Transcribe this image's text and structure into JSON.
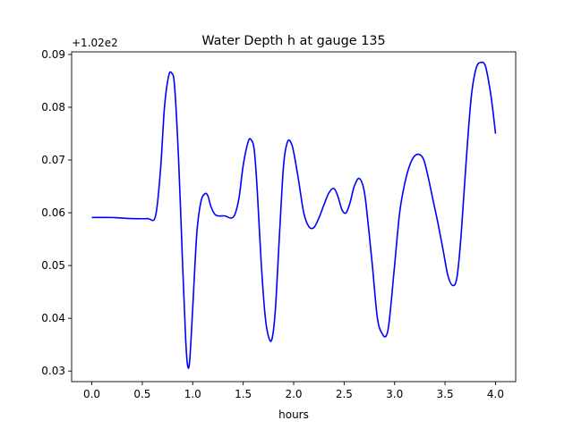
{
  "chart_data": {
    "type": "line",
    "title": "Water Depth h at gauge 135",
    "xlabel": "hours",
    "ylabel": "",
    "offset_text": "+1.02e2",
    "xlim": [
      -0.2,
      4.2
    ],
    "ylim": [
      0.028,
      0.0905
    ],
    "x_ticks": [
      0.0,
      0.5,
      1.0,
      1.5,
      2.0,
      2.5,
      3.0,
      3.5,
      4.0
    ],
    "x_tick_labels": [
      "0.0",
      "0.5",
      "1.0",
      "1.5",
      "2.0",
      "2.5",
      "3.0",
      "3.5",
      "4.0"
    ],
    "y_ticks": [
      0.03,
      0.04,
      0.05,
      0.06,
      0.07,
      0.08,
      0.09
    ],
    "y_tick_labels": [
      "0.03",
      "0.04",
      "0.05",
      "0.06",
      "0.07",
      "0.08",
      "0.09"
    ],
    "grid": false,
    "series": [
      {
        "color": "#0000ff",
        "x": [
          0.0,
          0.2,
          0.4,
          0.55,
          0.63,
          0.68,
          0.72,
          0.76,
          0.79,
          0.82,
          0.86,
          0.9,
          0.93,
          0.95,
          0.97,
          1.0,
          1.04,
          1.08,
          1.12,
          1.15,
          1.18,
          1.22,
          1.26,
          1.32,
          1.38,
          1.42,
          1.46,
          1.5,
          1.55,
          1.58,
          1.61,
          1.64,
          1.68,
          1.72,
          1.76,
          1.79,
          1.82,
          1.86,
          1.9,
          1.94,
          1.98,
          2.01,
          2.05,
          2.1,
          2.15,
          2.2,
          2.25,
          2.3,
          2.35,
          2.4,
          2.44,
          2.48,
          2.52,
          2.56,
          2.6,
          2.65,
          2.7,
          2.74,
          2.78,
          2.83,
          2.88,
          2.92,
          2.95,
          3.0,
          3.05,
          3.1,
          3.15,
          3.2,
          3.25,
          3.29,
          3.33,
          3.38,
          3.43,
          3.48,
          3.53,
          3.58,
          3.62,
          3.66,
          3.71,
          3.76,
          3.81,
          3.86,
          3.9,
          3.94,
          3.97,
          4.0
        ],
        "y": [
          0.0591,
          0.0591,
          0.0589,
          0.0589,
          0.0593,
          0.068,
          0.08,
          0.0858,
          0.0865,
          0.084,
          0.07,
          0.05,
          0.036,
          0.031,
          0.032,
          0.042,
          0.056,
          0.062,
          0.0636,
          0.0632,
          0.0612,
          0.0597,
          0.0594,
          0.0594,
          0.059,
          0.0598,
          0.063,
          0.069,
          0.0735,
          0.0738,
          0.0718,
          0.064,
          0.05,
          0.04,
          0.036,
          0.0365,
          0.042,
          0.056,
          0.069,
          0.0735,
          0.073,
          0.0705,
          0.066,
          0.06,
          0.0574,
          0.0572,
          0.059,
          0.0615,
          0.0638,
          0.0646,
          0.063,
          0.0605,
          0.06,
          0.062,
          0.065,
          0.0665,
          0.064,
          0.0575,
          0.05,
          0.04,
          0.037,
          0.0368,
          0.04,
          0.05,
          0.06,
          0.0655,
          0.069,
          0.0708,
          0.071,
          0.07,
          0.067,
          0.0625,
          0.058,
          0.053,
          0.048,
          0.0462,
          0.048,
          0.056,
          0.07,
          0.082,
          0.0875,
          0.0885,
          0.0878,
          0.084,
          0.08,
          0.075
        ]
      }
    ]
  }
}
